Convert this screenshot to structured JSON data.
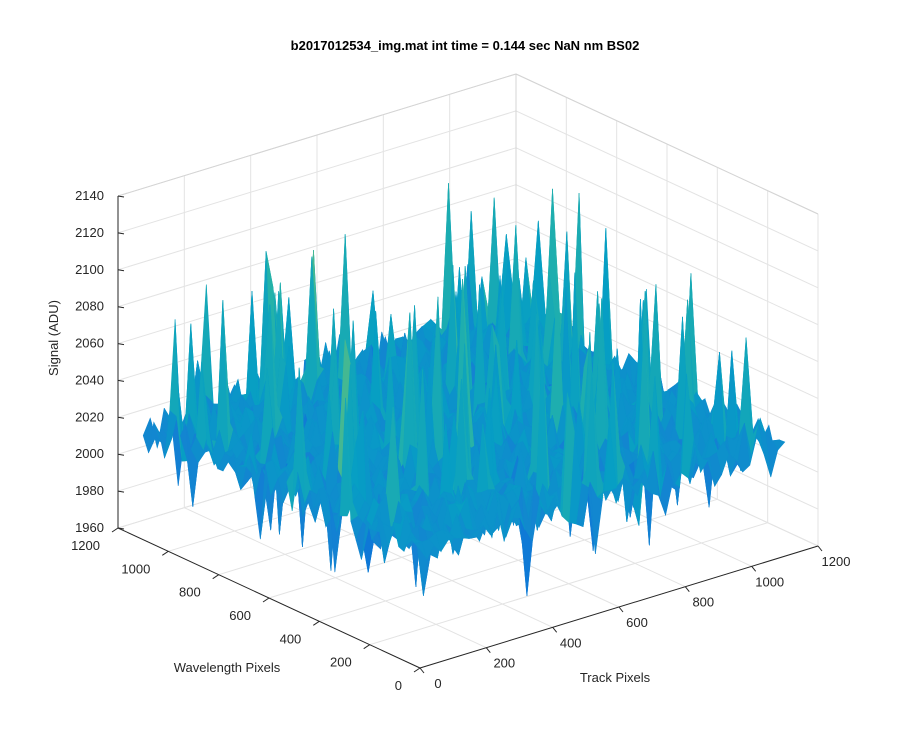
{
  "chart_data": {
    "type": "surface3d",
    "title": "b2017012534_img.mat int time = 0.144 sec  NaN nm BS02",
    "xlabel": "Track Pixels",
    "ylabel": "Wavelength Pixels",
    "zlabel": "Signal (ADU)",
    "xlim": [
      0,
      1200
    ],
    "ylim": [
      0,
      1200
    ],
    "zlim": [
      1960,
      2140
    ],
    "xticks": [
      0,
      200,
      400,
      600,
      800,
      1000,
      1200
    ],
    "yticks": [
      0,
      200,
      400,
      600,
      800,
      1000,
      1200
    ],
    "zticks": [
      1960,
      1980,
      2000,
      2020,
      2040,
      2060,
      2080,
      2100,
      2120,
      2140
    ],
    "data_extent": {
      "x": [
        0,
        1100
      ],
      "y": [
        0,
        1100
      ]
    },
    "surface_stats": {
      "mean": 2023,
      "min": 1972,
      "max": 2135
    },
    "colormap": "parula",
    "grid": true,
    "box": true
  }
}
